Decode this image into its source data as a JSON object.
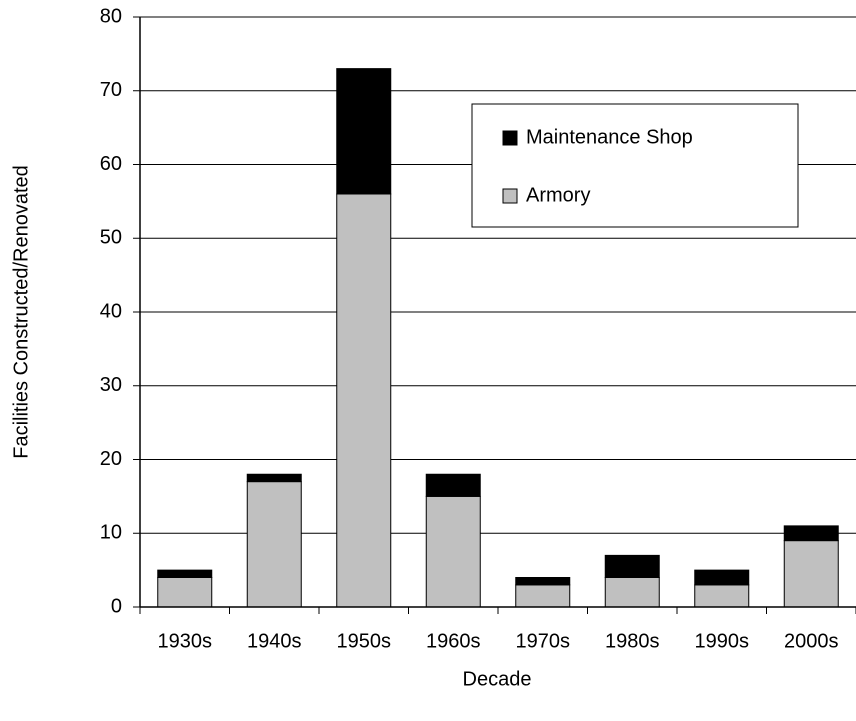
{
  "chart_data": {
    "type": "stacked_bar",
    "x_label": "Decade",
    "y_label": "Facilities Constructed/Renovated",
    "categories": [
      "1930s",
      "1940s",
      "1950s",
      "1960s",
      "1970s",
      "1980s",
      "1990s",
      "2000s"
    ],
    "series": [
      {
        "name": "Armory",
        "color": "#c0c0c0",
        "values": [
          4,
          17,
          56,
          15,
          3,
          4,
          3,
          9
        ]
      },
      {
        "name": "Maintenance Shop",
        "color": "#000000",
        "values": [
          1,
          1,
          17,
          3,
          1,
          3,
          2,
          2
        ]
      }
    ],
    "ylim": [
      0,
      80
    ],
    "yticks": [
      0,
      10,
      20,
      30,
      40,
      50,
      60,
      70,
      80
    ],
    "grid": true,
    "legend": "upper right"
  }
}
